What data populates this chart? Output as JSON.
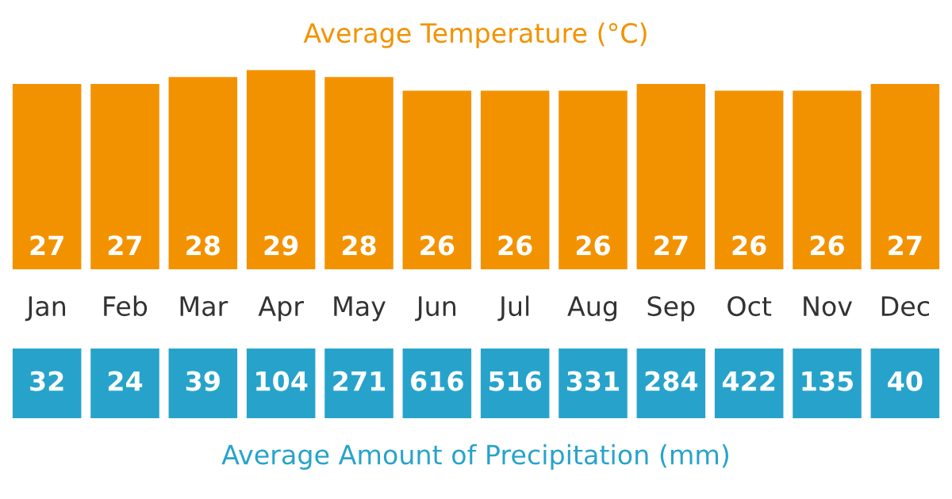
{
  "chart_data": [
    {
      "type": "bar",
      "title": "Average Temperature (°C)",
      "categories": [
        "Jan",
        "Feb",
        "Mar",
        "Apr",
        "May",
        "Jun",
        "Jul",
        "Aug",
        "Sep",
        "Oct",
        "Nov",
        "Dec"
      ],
      "values": [
        27,
        27,
        28,
        29,
        28,
        26,
        26,
        26,
        27,
        26,
        26,
        27
      ],
      "color": "#f39200",
      "data_labels": true
    },
    {
      "type": "other",
      "title": "Average Amount of Precipitation (mm)",
      "categories": [
        null,
        null,
        null,
        null,
        null,
        null,
        null,
        null,
        null,
        null,
        null,
        null
      ],
      "values": [
        32,
        24,
        39,
        104,
        271,
        616,
        516,
        331,
        284,
        422,
        135,
        40
      ],
      "color": "#27a3cb",
      "data_labels": true
    }
  ]
}
